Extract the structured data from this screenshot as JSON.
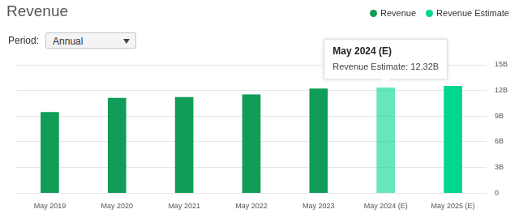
{
  "chart_data": {
    "type": "bar",
    "title": "Revenue",
    "controls": {
      "label": "Period:",
      "value": "Annual"
    },
    "categories": [
      "May 2019",
      "May 2020",
      "May 2021",
      "May 2022",
      "May 2023",
      "May 2024 (E)",
      "May 2025 (E)"
    ],
    "series": [
      {
        "name": "Revenue",
        "color": "#109d58",
        "values": [
          9.45,
          11.1,
          11.2,
          11.5,
          12.2,
          null,
          null
        ]
      },
      {
        "name": "Revenue Estimate",
        "color": "#00d68f",
        "values": [
          null,
          null,
          null,
          null,
          null,
          12.32,
          12.5
        ]
      }
    ],
    "ylim": [
      0,
      15
    ],
    "yticks": [
      0,
      {
        "value": 3,
        "label": "3B"
      },
      {
        "value": 6,
        "label": "6B"
      },
      {
        "value": 9,
        "label": "9B"
      },
      {
        "value": 12,
        "label": "12B"
      },
      {
        "value": 15,
        "label": "15B"
      }
    ],
    "grid": true,
    "legend": "top-right",
    "annotations": [
      {
        "title": "May 2024 (E)",
        "text": "Revenue Estimate: 12.32B"
      }
    ]
  }
}
